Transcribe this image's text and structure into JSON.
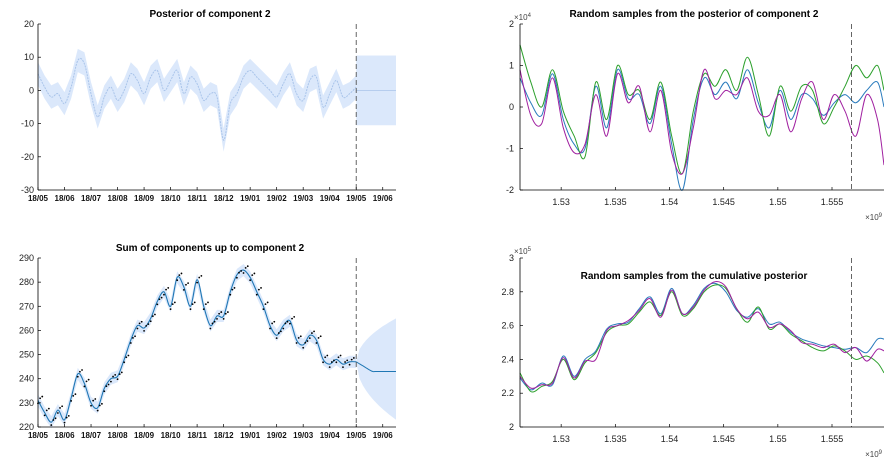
{
  "colors": {
    "band": "#dbe8fb",
    "mean_light": "#a9c4ea",
    "mean_dark": "#1f77b4",
    "points": "#000000",
    "sample1": "#2a7bbd",
    "sample2": "#2ca02c",
    "sample3": "#a020a0",
    "vline": "#555555"
  },
  "chart_data": [
    {
      "type": "line",
      "title": "Posterior of component 2",
      "xlabel": "",
      "ylabel": "",
      "x_tick_labels": [
        "18/05",
        "18/06",
        "18/07",
        "18/08",
        "18/09",
        "18/10",
        "18/11",
        "18/12",
        "19/01",
        "19/02",
        "19/03",
        "19/04",
        "19/05",
        "19/06"
      ],
      "y_ticks": [
        -30,
        -20,
        -10,
        0,
        10,
        20
      ],
      "ylim": [
        -30,
        20
      ],
      "xlim_months": [
        0,
        13.5
      ],
      "forecast_start_month": 12.0,
      "mean_x_months": [
        0,
        0.25,
        0.5,
        0.75,
        1.0,
        1.25,
        1.5,
        1.75,
        2.0,
        2.25,
        2.5,
        2.75,
        3.0,
        3.25,
        3.5,
        3.75,
        4.0,
        4.25,
        4.5,
        4.75,
        5.0,
        5.25,
        5.5,
        5.75,
        6.0,
        6.25,
        6.5,
        6.75,
        7.0,
        7.25,
        7.5,
        7.75,
        8.0,
        8.25,
        8.5,
        8.75,
        9.0,
        9.25,
        9.5,
        9.75,
        10.0,
        10.25,
        10.5,
        10.75,
        11.0,
        11.25,
        11.5,
        11.75,
        12.0
      ],
      "mean": [
        5,
        1,
        -2,
        -1,
        -4,
        1,
        9,
        8,
        -1,
        -8,
        -2,
        1,
        -3,
        0,
        5,
        3,
        -1,
        4,
        6,
        0,
        3,
        6,
        -1,
        4,
        2,
        -3,
        -1,
        -2,
        -15,
        -4,
        -1,
        4,
        6,
        4,
        2,
        0,
        -2,
        2,
        5,
        -1,
        -3,
        3,
        4,
        -5,
        -1,
        3,
        -2,
        -1,
        1
      ],
      "band_half_width": 3.5,
      "forecast_band": [
        -10.5,
        10.5
      ],
      "forecast_mean": 0
    },
    {
      "type": "line",
      "title": "Random samples from the posterior of component 2",
      "xlabel": "",
      "ylabel": "",
      "x_ticks": [
        1.53,
        1.535,
        1.54,
        1.545,
        1.55,
        1.555
      ],
      "x_exponent": "10^9",
      "y_ticks": [
        -2,
        -1,
        0,
        1,
        2
      ],
      "y_exponent": "10^4",
      "xlim": [
        1.5262,
        1.5598
      ],
      "ylim": [
        -2,
        2
      ],
      "forecast_start": 1.5568,
      "x": [
        1.5262,
        1.5272,
        1.5282,
        1.5292,
        1.5302,
        1.5312,
        1.5322,
        1.5332,
        1.5342,
        1.5352,
        1.5362,
        1.5372,
        1.5382,
        1.5392,
        1.5402,
        1.5412,
        1.5422,
        1.5432,
        1.5442,
        1.5452,
        1.5462,
        1.5472,
        1.5482,
        1.5492,
        1.5502,
        1.5512,
        1.5522,
        1.5532,
        1.5542,
        1.5552,
        1.5562,
        1.5572,
        1.5582,
        1.5592,
        1.5598
      ],
      "series": [
        {
          "values": [
            0.7,
            0.1,
            -0.2,
            0.8,
            -0.3,
            -0.9,
            -1.0,
            0.5,
            -0.5,
            0.9,
            0.2,
            0.3,
            -0.4,
            0.5,
            -0.9,
            -2.0,
            -0.3,
            0.7,
            0.3,
            0.6,
            0.2,
            0.9,
            0.1,
            -0.5,
            0.4,
            -0.3,
            0.3,
            0.2,
            -0.2,
            0.1,
            0.3,
            0.1,
            0.4,
            0.6,
            0.0
          ]
        },
        {
          "values": [
            1.5,
            0.6,
            0.0,
            0.9,
            -0.1,
            -0.7,
            -1.2,
            0.6,
            -0.3,
            1.0,
            0.3,
            0.4,
            -0.3,
            0.6,
            -0.7,
            -1.6,
            -0.1,
            0.8,
            0.5,
            0.9,
            0.4,
            1.2,
            0.3,
            -0.7,
            0.5,
            -0.1,
            0.5,
            0.4,
            -0.4,
            0.0,
            0.5,
            1.0,
            0.7,
            1.0,
            0.4
          ]
        },
        {
          "values": [
            0.9,
            -0.2,
            -0.4,
            0.7,
            -0.5,
            -1.1,
            -0.9,
            0.3,
            -0.7,
            0.8,
            0.1,
            0.5,
            -0.6,
            0.4,
            -1.1,
            -1.6,
            -0.5,
            0.9,
            0.2,
            0.4,
            0.3,
            0.7,
            -0.1,
            -0.2,
            0.3,
            -0.6,
            0.2,
            0.6,
            -0.3,
            0.3,
            -0.1,
            -0.7,
            0.3,
            -0.3,
            -1.4
          ]
        }
      ]
    },
    {
      "type": "line",
      "title": "Sum of components up to component 2",
      "xlabel": "",
      "ylabel": "",
      "x_tick_labels": [
        "18/05",
        "18/06",
        "18/07",
        "18/08",
        "18/09",
        "18/10",
        "18/11",
        "18/12",
        "19/01",
        "19/02",
        "19/03",
        "19/04",
        "19/05",
        "19/06"
      ],
      "y_ticks": [
        220,
        230,
        240,
        250,
        260,
        270,
        280,
        290
      ],
      "ylim": [
        220,
        290
      ],
      "xlim_months": [
        0,
        13.5
      ],
      "forecast_start_month": 12.0,
      "mean_x_months": [
        0,
        0.25,
        0.5,
        0.75,
        1.0,
        1.25,
        1.5,
        1.75,
        2.0,
        2.25,
        2.5,
        2.75,
        3.0,
        3.25,
        3.5,
        3.75,
        4.0,
        4.25,
        4.5,
        4.75,
        5.0,
        5.25,
        5.5,
        5.75,
        6.0,
        6.25,
        6.5,
        6.75,
        7.0,
        7.25,
        7.5,
        7.75,
        8.0,
        8.25,
        8.5,
        8.75,
        9.0,
        9.25,
        9.5,
        9.75,
        10.0,
        10.25,
        10.5,
        10.75,
        11.0,
        11.25,
        11.5,
        11.75,
        12.0
      ],
      "mean": [
        231,
        226,
        222,
        227,
        223,
        232,
        242,
        238,
        230,
        228,
        236,
        240,
        241,
        248,
        256,
        262,
        261,
        265,
        272,
        276,
        270,
        282,
        278,
        270,
        281,
        270,
        262,
        266,
        266,
        276,
        283,
        285,
        282,
        276,
        270,
        262,
        258,
        262,
        264,
        256,
        254,
        258,
        256,
        248,
        246,
        248,
        246,
        247,
        247
      ],
      "band_half_width": 2.5,
      "forecast_mean": 243,
      "forecast_band_end": [
        223,
        265
      ]
    },
    {
      "type": "line",
      "title": "Random samples from the cumulative posterior",
      "xlabel": "",
      "ylabel": "",
      "x_ticks": [
        1.53,
        1.535,
        1.54,
        1.545,
        1.55,
        1.555
      ],
      "x_exponent": "10^9",
      "y_ticks": [
        2,
        2.2,
        2.4,
        2.6,
        2.8,
        3
      ],
      "y_exponent": "10^5",
      "xlim": [
        1.5262,
        1.5598
      ],
      "ylim": [
        2,
        3
      ],
      "forecast_start": 1.5568,
      "x": [
        1.5262,
        1.5272,
        1.5282,
        1.5292,
        1.5302,
        1.5312,
        1.5322,
        1.5332,
        1.5342,
        1.5352,
        1.5362,
        1.5372,
        1.5382,
        1.5392,
        1.5402,
        1.5412,
        1.5422,
        1.5432,
        1.5442,
        1.5452,
        1.5462,
        1.5472,
        1.5482,
        1.5492,
        1.5502,
        1.5512,
        1.5522,
        1.5532,
        1.5542,
        1.5552,
        1.5562,
        1.5572,
        1.5582,
        1.5592,
        1.5598
      ],
      "series": [
        {
          "values": [
            2.29,
            2.22,
            2.26,
            2.25,
            2.42,
            2.3,
            2.4,
            2.45,
            2.58,
            2.61,
            2.62,
            2.7,
            2.77,
            2.67,
            2.82,
            2.67,
            2.72,
            2.82,
            2.85,
            2.8,
            2.69,
            2.65,
            2.7,
            2.61,
            2.62,
            2.56,
            2.52,
            2.5,
            2.48,
            2.47,
            2.46,
            2.47,
            2.44,
            2.52,
            2.52
          ]
        },
        {
          "values": [
            2.32,
            2.21,
            2.24,
            2.27,
            2.4,
            2.28,
            2.38,
            2.44,
            2.56,
            2.6,
            2.61,
            2.68,
            2.74,
            2.66,
            2.8,
            2.66,
            2.7,
            2.8,
            2.84,
            2.82,
            2.7,
            2.62,
            2.71,
            2.58,
            2.61,
            2.55,
            2.51,
            2.47,
            2.45,
            2.48,
            2.45,
            2.4,
            2.42,
            2.38,
            2.32
          ]
        },
        {
          "values": [
            2.3,
            2.23,
            2.25,
            2.26,
            2.41,
            2.29,
            2.39,
            2.4,
            2.57,
            2.6,
            2.63,
            2.69,
            2.76,
            2.65,
            2.81,
            2.67,
            2.71,
            2.81,
            2.86,
            2.83,
            2.7,
            2.64,
            2.68,
            2.59,
            2.61,
            2.57,
            2.5,
            2.49,
            2.47,
            2.49,
            2.44,
            2.47,
            2.39,
            2.46,
            2.45
          ]
        }
      ]
    }
  ]
}
